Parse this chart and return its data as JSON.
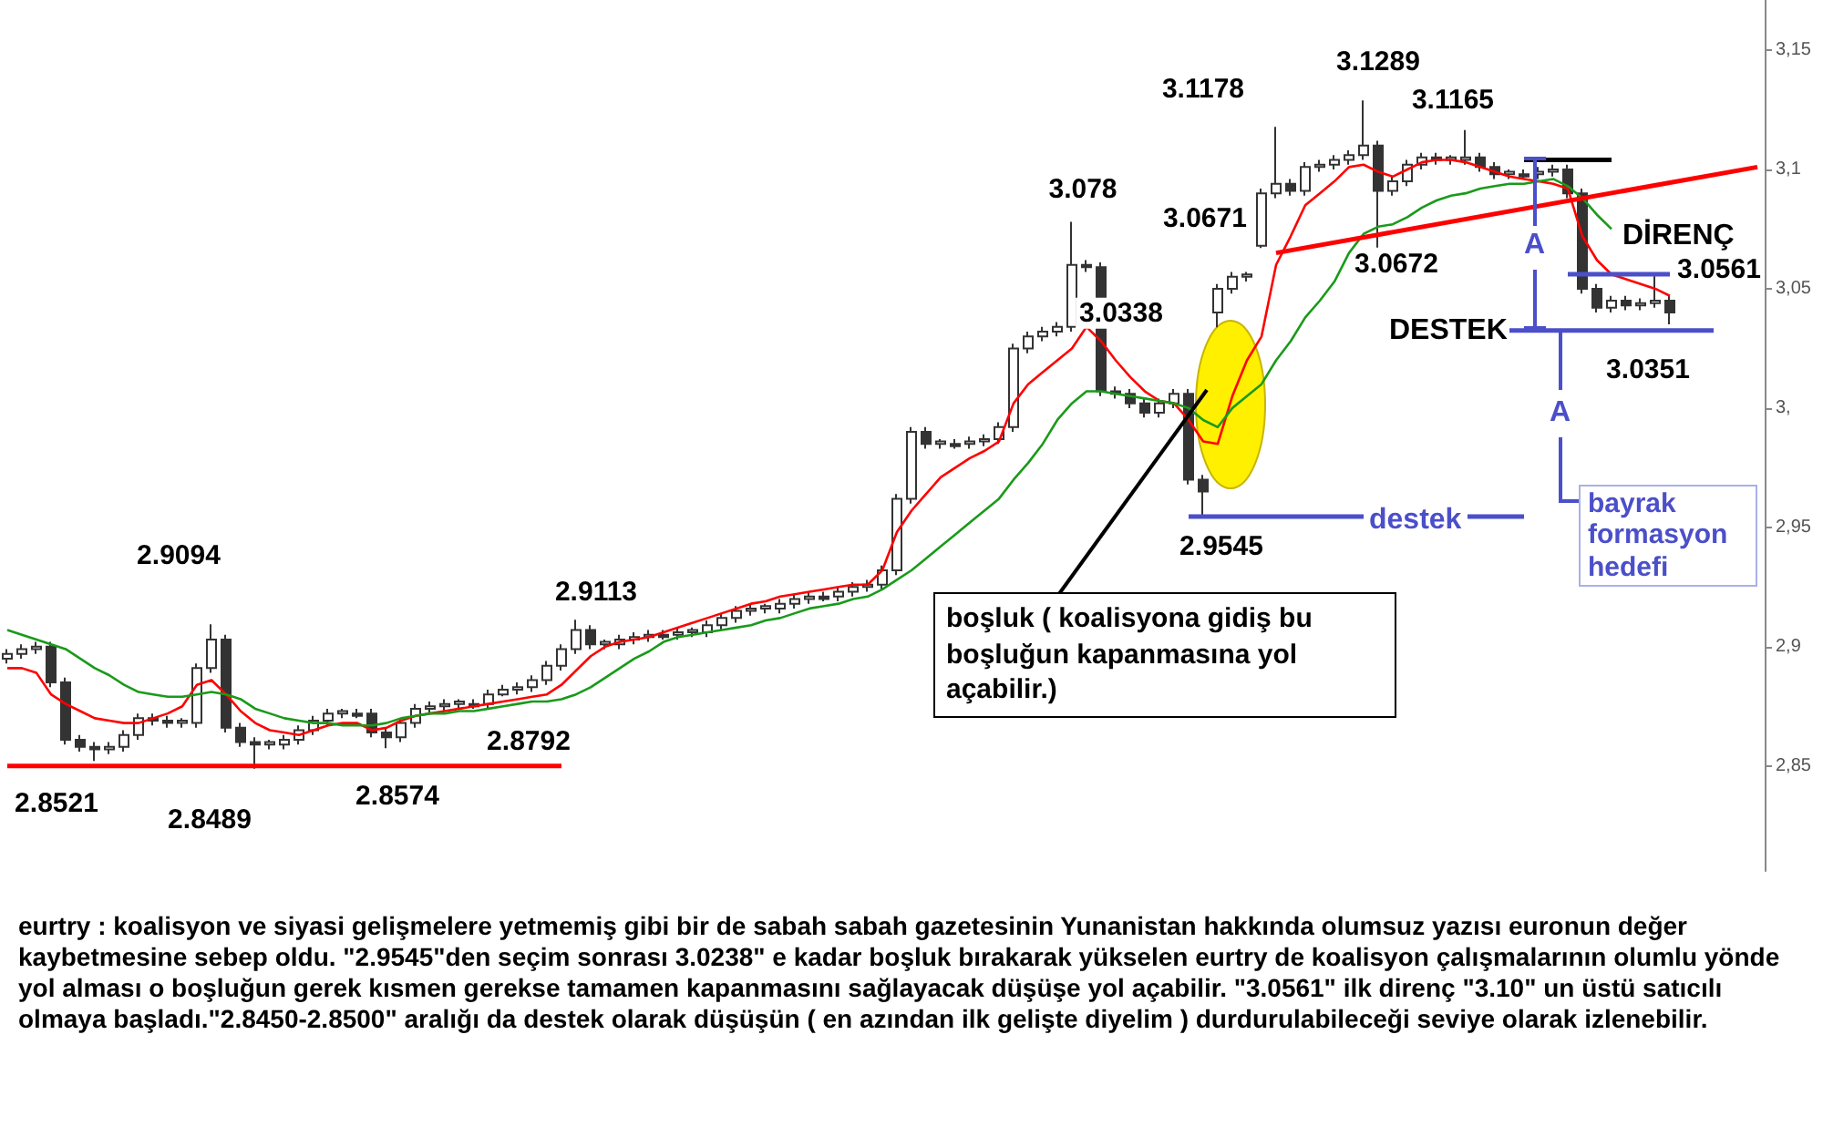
{
  "chart_data": {
    "type": "candlestick",
    "color": "#333333",
    "categories": [
      null,
      null,
      null,
      null,
      null,
      null,
      null,
      null,
      null,
      null,
      null,
      null,
      null,
      null,
      null,
      null,
      null,
      null,
      null,
      null,
      null,
      null,
      null,
      null,
      null,
      null,
      null,
      null,
      null,
      null,
      null,
      null,
      null,
      null,
      null,
      null,
      null,
      null,
      null,
      null,
      null,
      null,
      null,
      null,
      null,
      null,
      null,
      null,
      null,
      null,
      null,
      null,
      null,
      null,
      null,
      null,
      null,
      null,
      null,
      null,
      null,
      null,
      null,
      null,
      null,
      null,
      null,
      null,
      null,
      null,
      null,
      null,
      null,
      null,
      null,
      null,
      null,
      null,
      null,
      null,
      null,
      null,
      null,
      null,
      null,
      null,
      null,
      null,
      null,
      null,
      null,
      null,
      null,
      null,
      null,
      null,
      null,
      null,
      null,
      null,
      null,
      null,
      null,
      null,
      null,
      null,
      null,
      null,
      null,
      null,
      null,
      null,
      null,
      null,
      null,
      null,
      null,
      null,
      null,
      null,
      null
    ],
    "ohlc": [
      [
        2.895,
        2.899,
        2.893,
        2.897
      ],
      [
        2.897,
        2.901,
        2.895,
        2.899
      ],
      [
        2.899,
        2.902,
        2.897,
        2.9
      ],
      [
        2.9,
        2.902,
        2.883,
        2.885
      ],
      [
        2.885,
        2.887,
        2.859,
        2.861
      ],
      [
        2.861,
        2.863,
        2.856,
        2.858
      ],
      [
        2.858,
        2.86,
        2.8521,
        2.857
      ],
      [
        2.857,
        2.86,
        2.855,
        2.858
      ],
      [
        2.858,
        2.865,
        2.856,
        2.863
      ],
      [
        2.863,
        2.872,
        2.861,
        2.87
      ],
      [
        2.87,
        2.872,
        2.867,
        2.869
      ],
      [
        2.869,
        2.871,
        2.866,
        2.868
      ],
      [
        2.868,
        2.87,
        2.866,
        2.869
      ],
      [
        2.868,
        2.893,
        2.866,
        2.891
      ],
      [
        2.891,
        2.9094,
        2.889,
        2.903
      ],
      [
        2.903,
        2.905,
        2.864,
        2.866
      ],
      [
        2.866,
        2.868,
        2.858,
        2.86
      ],
      [
        2.86,
        2.862,
        2.8489,
        2.859
      ],
      [
        2.859,
        2.861,
        2.857,
        2.86
      ],
      [
        2.859,
        2.863,
        2.857,
        2.861
      ],
      [
        2.861,
        2.867,
        2.859,
        2.865
      ],
      [
        2.865,
        2.871,
        2.863,
        2.869
      ],
      [
        2.869,
        2.874,
        2.867,
        2.872
      ],
      [
        2.872,
        2.874,
        2.87,
        2.873
      ],
      [
        2.872,
        2.874,
        2.87,
        2.871
      ],
      [
        2.872,
        2.874,
        2.862,
        2.864
      ],
      [
        2.864,
        2.866,
        2.8574,
        2.862
      ],
      [
        2.862,
        2.87,
        2.86,
        2.868
      ],
      [
        2.868,
        2.876,
        2.866,
        2.874
      ],
      [
        2.874,
        2.877,
        2.872,
        2.875
      ],
      [
        2.875,
        2.878,
        2.873,
        2.876
      ],
      [
        2.876,
        2.878,
        2.874,
        2.877
      ],
      [
        2.876,
        2.878,
        2.874,
        2.875
      ],
      [
        2.876,
        2.882,
        2.874,
        2.88
      ],
      [
        2.88,
        2.884,
        2.8792,
        2.882
      ],
      [
        2.882,
        2.885,
        2.88,
        2.883
      ],
      [
        2.883,
        2.888,
        2.881,
        2.886
      ],
      [
        2.886,
        2.894,
        2.884,
        2.892
      ],
      [
        2.892,
        2.901,
        2.89,
        2.899
      ],
      [
        2.899,
        2.9113,
        2.897,
        2.907
      ],
      [
        2.907,
        2.909,
        2.899,
        2.901
      ],
      [
        2.901,
        2.903,
        2.899,
        2.902
      ],
      [
        2.901,
        2.905,
        2.899,
        2.903
      ],
      [
        2.903,
        2.906,
        2.901,
        2.904
      ],
      [
        2.904,
        2.907,
        2.902,
        2.905
      ],
      [
        2.905,
        2.907,
        2.903,
        2.904
      ],
      [
        2.905,
        2.908,
        2.903,
        2.906
      ],
      [
        2.906,
        2.908,
        2.904,
        2.907
      ],
      [
        2.906,
        2.911,
        2.904,
        2.909
      ],
      [
        2.909,
        2.914,
        2.907,
        2.912
      ],
      [
        2.912,
        2.917,
        2.91,
        2.915
      ],
      [
        2.915,
        2.918,
        2.913,
        2.916
      ],
      [
        2.916,
        2.918,
        2.914,
        2.917
      ],
      [
        2.916,
        2.92,
        2.914,
        2.918
      ],
      [
        2.918,
        2.922,
        2.916,
        2.92
      ],
      [
        2.92,
        2.923,
        2.918,
        2.921
      ],
      [
        2.921,
        2.923,
        2.919,
        2.92
      ],
      [
        2.921,
        2.925,
        2.919,
        2.923
      ],
      [
        2.923,
        2.927,
        2.921,
        2.925
      ],
      [
        2.925,
        2.928,
        2.923,
        2.926
      ],
      [
        2.926,
        2.934,
        2.924,
        2.932
      ],
      [
        2.932,
        2.964,
        2.93,
        2.962
      ],
      [
        2.962,
        2.992,
        2.96,
        2.99
      ],
      [
        2.99,
        2.992,
        2.983,
        2.985
      ],
      [
        2.985,
        2.987,
        2.983,
        2.986
      ],
      [
        2.985,
        2.987,
        2.983,
        2.984
      ],
      [
        2.985,
        2.988,
        2.983,
        2.986
      ],
      [
        2.986,
        2.989,
        2.984,
        2.987
      ],
      [
        2.987,
        2.994,
        2.985,
        2.992
      ],
      [
        2.992,
        3.027,
        2.99,
        3.025
      ],
      [
        3.025,
        3.032,
        3.023,
        3.03
      ],
      [
        3.03,
        3.034,
        3.028,
        3.032
      ],
      [
        3.032,
        3.036,
        3.03,
        3.034
      ],
      [
        3.034,
        3.078,
        3.032,
        3.06
      ],
      [
        3.06,
        3.062,
        3.057,
        3.059
      ],
      [
        3.059,
        3.061,
        3.005,
        3.007
      ],
      [
        3.007,
        3.009,
        3.004,
        3.006
      ],
      [
        3.006,
        3.008,
        3.0,
        3.002
      ],
      [
        3.002,
        3.004,
        2.996,
        2.998
      ],
      [
        2.998,
        3.004,
        2.996,
        3.002
      ],
      [
        3.002,
        3.008,
        3.0,
        3.006
      ],
      [
        3.006,
        3.008,
        2.968,
        2.97
      ],
      [
        2.97,
        2.972,
        2.9545,
        2.965
      ],
      [
        3.04,
        3.052,
        3.0338,
        3.05
      ],
      [
        3.05,
        3.057,
        3.048,
        3.055
      ],
      [
        3.055,
        3.057,
        3.053,
        3.056
      ],
      [
        3.068,
        3.092,
        3.0671,
        3.09
      ],
      [
        3.09,
        3.1178,
        3.088,
        3.094
      ],
      [
        3.094,
        3.096,
        3.089,
        3.091
      ],
      [
        3.091,
        3.103,
        3.089,
        3.101
      ],
      [
        3.101,
        3.104,
        3.099,
        3.102
      ],
      [
        3.102,
        3.106,
        3.1,
        3.104
      ],
      [
        3.104,
        3.108,
        3.102,
        3.106
      ],
      [
        3.106,
        3.1289,
        3.104,
        3.11
      ],
      [
        3.11,
        3.112,
        3.0672,
        3.091
      ],
      [
        3.091,
        3.097,
        3.089,
        3.095
      ],
      [
        3.095,
        3.104,
        3.093,
        3.102
      ],
      [
        3.102,
        3.107,
        3.1,
        3.105
      ],
      [
        3.105,
        3.107,
        3.102,
        3.104
      ],
      [
        3.104,
        3.106,
        3.102,
        3.105
      ],
      [
        3.104,
        3.1165,
        3.102,
        3.105
      ],
      [
        3.105,
        3.107,
        3.099,
        3.101
      ],
      [
        3.101,
        3.103,
        3.096,
        3.098
      ],
      [
        3.098,
        3.1,
        3.096,
        3.099
      ],
      [
        3.098,
        3.1,
        3.096,
        3.097
      ],
      [
        3.098,
        3.101,
        3.096,
        3.099
      ],
      [
        3.099,
        3.102,
        3.097,
        3.1
      ],
      [
        3.1,
        3.102,
        3.088,
        3.09
      ],
      [
        3.09,
        3.092,
        3.048,
        3.05
      ],
      [
        3.05,
        3.052,
        3.04,
        3.042
      ],
      [
        3.042,
        3.047,
        3.04,
        3.045
      ],
      [
        3.045,
        3.047,
        3.041,
        3.043
      ],
      [
        3.043,
        3.046,
        3.041,
        3.044
      ],
      [
        3.044,
        3.0561,
        3.042,
        3.045
      ],
      [
        3.045,
        3.047,
        3.0351,
        3.04
      ],
      null,
      null,
      null,
      null,
      null,
      null
    ],
    "series": [
      {
        "type": "line",
        "color": "#ff0000",
        "values": [
          2.891,
          2.891,
          2.889,
          2.88,
          2.876,
          2.873,
          2.87,
          2.869,
          2.868,
          2.868,
          2.87,
          2.872,
          2.875,
          2.884,
          2.886,
          2.88,
          2.873,
          2.868,
          2.865,
          2.864,
          2.863,
          2.865,
          2.867,
          2.868,
          2.868,
          2.865,
          2.866,
          2.869,
          2.871,
          2.872,
          2.873,
          2.874,
          2.875,
          2.876,
          2.877,
          2.878,
          2.879,
          2.88,
          2.884,
          2.89,
          2.896,
          2.9,
          2.902,
          2.903,
          2.904,
          2.906,
          2.908,
          2.91,
          2.912,
          2.914,
          2.916,
          2.918,
          2.919,
          2.921,
          2.922,
          2.923,
          2.924,
          2.925,
          2.926,
          2.926,
          2.932,
          2.948,
          2.957,
          2.964,
          2.971,
          2.975,
          2.979,
          2.982,
          2.986,
          3.002,
          3.01,
          3.015,
          3.02,
          3.025,
          3.034,
          3.028,
          3.02,
          3.013,
          3.007,
          3.003,
          3.002,
          2.995,
          2.986,
          2.985,
          3.005,
          3.02,
          3.03,
          3.06,
          3.072,
          3.085,
          3.09,
          3.095,
          3.101,
          3.102,
          3.099,
          3.097,
          3.1,
          3.103,
          3.104,
          3.104,
          3.103,
          3.101,
          3.099,
          3.097,
          3.096,
          3.095,
          3.094,
          3.092,
          3.072,
          3.062,
          3.056,
          3.054,
          3.052,
          3.05,
          3.047,
          null,
          null,
          null,
          null,
          null,
          null
        ]
      },
      {
        "type": "line",
        "color": "#1a9a1a",
        "values": [
          2.907,
          2.905,
          2.903,
          2.901,
          2.899,
          2.895,
          2.891,
          2.888,
          2.884,
          2.881,
          2.88,
          2.879,
          2.879,
          2.88,
          2.881,
          2.88,
          2.878,
          2.874,
          2.872,
          2.87,
          2.869,
          2.868,
          2.868,
          2.867,
          2.867,
          2.867,
          2.868,
          2.87,
          2.871,
          2.872,
          2.872,
          2.873,
          2.873,
          2.874,
          2.875,
          2.876,
          2.877,
          2.877,
          2.878,
          2.88,
          2.883,
          2.887,
          2.891,
          2.895,
          2.898,
          2.902,
          2.904,
          2.905,
          2.906,
          2.907,
          2.908,
          2.909,
          2.911,
          2.912,
          2.914,
          2.916,
          2.917,
          2.918,
          2.92,
          2.921,
          2.924,
          2.928,
          2.932,
          2.937,
          2.942,
          2.947,
          2.952,
          2.957,
          2.962,
          2.97,
          2.977,
          2.985,
          2.995,
          3.002,
          3.007,
          3.007,
          3.006,
          3.005,
          3.004,
          3.003,
          3.002,
          3.0,
          2.995,
          2.992,
          3.0,
          3.005,
          3.01,
          3.02,
          3.028,
          3.038,
          3.045,
          3.053,
          3.065,
          3.073,
          3.076,
          3.077,
          3.08,
          3.084,
          3.087,
          3.089,
          3.09,
          3.092,
          3.093,
          3.094,
          3.094,
          3.095,
          3.096,
          3.093,
          3.088,
          3.081,
          3.075,
          null,
          null,
          null,
          null,
          null,
          null,
          null,
          null,
          null,
          null
        ]
      },
      {
        "type": "line",
        "color": "#ff0000",
        "values": [
          null,
          null,
          null,
          null,
          null,
          null,
          null,
          null,
          null,
          null,
          null,
          null,
          null,
          null,
          null,
          null,
          null,
          null,
          null,
          null,
          null,
          null,
          null,
          null,
          null,
          null,
          null,
          null,
          null,
          null,
          null,
          null,
          null,
          null,
          null,
          null,
          null,
          null,
          null,
          null,
          null,
          null,
          null,
          null,
          null,
          null,
          null,
          null,
          null,
          null,
          null,
          null,
          null,
          null,
          null,
          null,
          null,
          null,
          null,
          null,
          null,
          null,
          null,
          null,
          null,
          null,
          null,
          null,
          null,
          null,
          null,
          null,
          null,
          null,
          null,
          null,
          null,
          null,
          null,
          null,
          null,
          null,
          null,
          null,
          null,
          null,
          null,
          3.065,
          null,
          null,
          null,
          null,
          null,
          null,
          null,
          null,
          null,
          null,
          null,
          null,
          null,
          null,
          null,
          null,
          null,
          null,
          null,
          null,
          null,
          null,
          null,
          null,
          null,
          null,
          null,
          null,
          null,
          null,
          null,
          null,
          3.101
        ]
      },
      {
        "type": "line",
        "color": "#ff0000",
        "values": [
          2.85,
          null,
          null,
          null,
          null,
          null,
          null,
          null,
          null,
          null,
          null,
          null,
          null,
          null,
          null,
          null,
          null,
          null,
          null,
          null,
          null,
          null,
          null,
          null,
          null,
          null,
          null,
          null,
          null,
          null,
          null,
          null,
          null,
          null,
          null,
          null,
          null,
          null,
          2.85,
          null,
          null,
          null,
          null,
          null,
          null,
          null,
          null,
          null,
          null,
          null,
          null,
          null,
          null,
          null,
          null,
          null,
          null,
          null,
          null,
          null,
          null,
          null,
          null,
          null,
          null,
          null,
          null,
          null,
          null,
          null,
          null,
          null,
          null,
          null,
          null,
          null,
          null,
          null,
          null,
          null,
          null,
          null,
          null,
          null,
          null,
          null,
          null,
          null,
          null,
          null,
          null,
          null,
          null,
          null,
          null,
          null,
          null,
          null,
          null,
          null,
          null,
          null,
          null,
          null,
          null,
          null,
          null,
          null,
          null,
          null,
          null,
          null,
          null,
          null,
          null,
          null,
          null,
          null,
          null,
          null,
          null
        ]
      },
      {
        "type": "line",
        "color": "#000000",
        "values": [
          null,
          null,
          null,
          null,
          null,
          null,
          null,
          null,
          null,
          null,
          null,
          null,
          null,
          null,
          null,
          null,
          null,
          null,
          null,
          null,
          null,
          null,
          null,
          null,
          null,
          null,
          null,
          null,
          null,
          null,
          null,
          null,
          null,
          null,
          null,
          null,
          null,
          null,
          null,
          null,
          null,
          null,
          null,
          null,
          null,
          null,
          null,
          null,
          null,
          null,
          null,
          null,
          null,
          null,
          null,
          null,
          null,
          null,
          null,
          null,
          null,
          null,
          null,
          null,
          null,
          null,
          null,
          null,
          null,
          null,
          null,
          null,
          null,
          null,
          null,
          null,
          null,
          null,
          null,
          null,
          null,
          null,
          null,
          null,
          null,
          null,
          null,
          null,
          null,
          null,
          null,
          null,
          null,
          null,
          null,
          null,
          null,
          null,
          null,
          null,
          null,
          null,
          null,
          null,
          3.104,
          null,
          null,
          null,
          null,
          null,
          3.104,
          null,
          null,
          null,
          null,
          null,
          null,
          null,
          null,
          null,
          null
        ]
      },
      {
        "type": "line",
        "color": "#4b4fc9",
        "values": [
          null,
          null,
          null,
          null,
          null,
          null,
          null,
          null,
          null,
          null,
          null,
          null,
          null,
          null,
          null,
          null,
          null,
          null,
          null,
          null,
          null,
          null,
          null,
          null,
          null,
          null,
          null,
          null,
          null,
          null,
          null,
          null,
          null,
          null,
          null,
          null,
          null,
          null,
          null,
          null,
          null,
          null,
          null,
          null,
          null,
          null,
          null,
          null,
          null,
          null,
          null,
          null,
          null,
          null,
          null,
          null,
          null,
          null,
          null,
          null,
          null,
          null,
          null,
          null,
          null,
          null,
          null,
          null,
          null,
          null,
          null,
          null,
          null,
          null,
          null,
          null,
          null,
          null,
          null,
          null,
          null,
          null,
          null,
          null,
          null,
          null,
          null,
          null,
          null,
          null,
          null,
          null,
          null,
          null,
          null,
          null,
          null,
          null,
          null,
          null,
          null,
          null,
          null,
          null,
          null,
          null,
          null,
          3.0561,
          null,
          null,
          null,
          null,
          null,
          null,
          3.0561,
          null,
          null,
          null,
          null,
          null,
          null
        ]
      },
      {
        "type": "line",
        "color": "#4b4fc9",
        "values": [
          null,
          null,
          null,
          null,
          null,
          null,
          null,
          null,
          null,
          null,
          null,
          null,
          null,
          null,
          null,
          null,
          null,
          null,
          null,
          null,
          null,
          null,
          null,
          null,
          null,
          null,
          null,
          null,
          null,
          null,
          null,
          null,
          null,
          null,
          null,
          null,
          null,
          null,
          null,
          null,
          null,
          null,
          null,
          null,
          null,
          null,
          null,
          null,
          null,
          null,
          null,
          null,
          null,
          null,
          null,
          null,
          null,
          null,
          null,
          null,
          null,
          null,
          null,
          null,
          null,
          null,
          null,
          null,
          null,
          null,
          null,
          null,
          null,
          null,
          null,
          null,
          null,
          null,
          null,
          null,
          null,
          null,
          null,
          null,
          null,
          null,
          null,
          null,
          null,
          null,
          null,
          null,
          null,
          null,
          null,
          null,
          null,
          null,
          null,
          null,
          null,
          null,
          null,
          3.0325,
          null,
          null,
          null,
          null,
          null,
          null,
          null,
          null,
          null,
          null,
          null,
          null,
          null,
          3.0325,
          null,
          null,
          null
        ]
      },
      {
        "type": "line",
        "color": "#4b4fc9",
        "values": [
          null,
          null,
          null,
          null,
          null,
          null,
          null,
          null,
          null,
          null,
          null,
          null,
          null,
          null,
          null,
          null,
          null,
          null,
          null,
          null,
          null,
          null,
          null,
          null,
          null,
          null,
          null,
          null,
          null,
          null,
          null,
          null,
          null,
          null,
          null,
          null,
          null,
          null,
          null,
          null,
          null,
          null,
          null,
          null,
          null,
          null,
          null,
          null,
          null,
          null,
          null,
          null,
          null,
          null,
          null,
          null,
          null,
          null,
          null,
          null,
          null,
          null,
          null,
          null,
          null,
          null,
          null,
          null,
          null,
          null,
          null,
          null,
          null,
          null,
          null,
          null,
          null,
          null,
          null,
          null,
          null,
          2.9545,
          null,
          null,
          null,
          null,
          null,
          null,
          null,
          null,
          null,
          null,
          null,
          null,
          null,
          null,
          null,
          null,
          null,
          null,
          null,
          null,
          null,
          null,
          2.9545,
          null,
          null,
          null,
          null,
          null,
          null,
          null,
          null,
          null,
          null,
          null,
          null,
          null,
          null,
          null,
          null
        ]
      }
    ],
    "ylim": [
      2.806,
      3.171
    ],
    "yticks": [
      {
        "value": 2.85,
        "label": "2,85"
      },
      {
        "value": 2.9,
        "label": "2,9"
      },
      {
        "value": 2.95,
        "label": "2,95"
      },
      {
        "value": 3,
        "label": "3,"
      },
      {
        "value": 3.05,
        "label": "3,05"
      },
      {
        "value": 3.1,
        "label": "3,1"
      },
      {
        "value": 3.15,
        "label": "3,15"
      }
    ],
    "tick_labels": "y",
    "grid": false,
    "annotations": [
      "2.8521",
      "2.9094",
      "2.8489",
      "2.8574",
      "2.8792",
      "2.9113",
      "3.078",
      "3.0338",
      "2.9545",
      "3.1178",
      "3.0671",
      "3.1289",
      "3.1165",
      "3.0672",
      "3.0561",
      "3.0351",
      "DİRENÇ",
      "DESTEK",
      "destek",
      "A",
      "A",
      "bayrak formasyon hedefi",
      "boşluk ( koalisyona gidiş bu boşluğun kapanmasına yol açabilir.)",
      "eurtry : koalisyon ve siyasi gelişmelere yetmemiş gibi bir de sabah sabah gazetesinin Yunanistan hakkında olumsuz yazısı euronun değer kaybetmesine sebep oldu. \"2.9545\"den seçim sonrası 3.0238\" e kadar boşluk bırakarak yükselen eurtry de koalisyon çalışmalarının olumlu yönde yol alması o boşluğun gerek kısmen gerekse tamamen kapanmasını sağlayacak düşüşe yol açabilir. \"3.0561\" ilk direnç \"3.10\" un üstü satıcılı olmaya başladı.\"2.8450-2.8500\" aralığı da destek olarak düşüşün ( en azından ilk gelişte diyelim ) durdurulabileceği seviye olarak izlenebilir."
    ]
  }
}
